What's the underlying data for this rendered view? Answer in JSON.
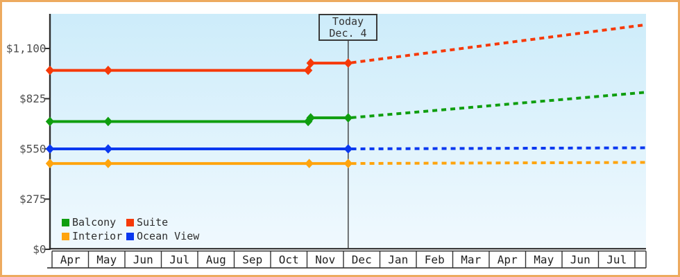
{
  "colors": {
    "frame_border": "#edaa5f",
    "plot_bg_top": "#cdecfa",
    "plot_bg_bottom": "#f0f9fe",
    "axis": "#2e2e2e",
    "y_label_text": "#4f4f4f",
    "month_text": "#1f1f1f",
    "today_line": "#3a3a3a"
  },
  "chart_data": {
    "type": "line",
    "title": "",
    "y_axis": {
      "ticks": [
        {
          "value": 0,
          "label": "$0"
        },
        {
          "value": 275,
          "label": "$275"
        },
        {
          "value": 550,
          "label": "$550"
        },
        {
          "value": 825,
          "label": "$825"
        },
        {
          "value": 1100,
          "label": "$1,100"
        }
      ],
      "range_shown": [
        0,
        1290
      ],
      "grid": "off"
    },
    "x_axis": {
      "months": [
        "Apr",
        "May",
        "Jun",
        "Jul",
        "Aug",
        "Sep",
        "Oct",
        "Nov",
        "Dec",
        "Jan",
        "Feb",
        "Mar",
        "Apr",
        "May",
        "Jun",
        "Jul"
      ]
    },
    "today": {
      "line1": "Today",
      "line2": "Dec. 4",
      "month_position": 8.13
    },
    "series": [
      {
        "name": "Balcony",
        "color": "#0f9e0f",
        "solid_points": [
          {
            "x": -0.057,
            "value": 700,
            "marker": true
          },
          {
            "x": 1.54,
            "value": 700,
            "marker": true
          },
          {
            "x": 7.03,
            "value": 700,
            "marker": true
          },
          {
            "x": 7.1,
            "value": 720,
            "marker": true
          },
          {
            "x": 8.13,
            "value": 720,
            "marker": true
          }
        ],
        "forecast_points": [
          {
            "x": 8.22,
            "value": 721
          },
          {
            "x": 16.3,
            "value": 860
          }
        ]
      },
      {
        "name": "Suite",
        "color": "#f63908",
        "solid_points": [
          {
            "x": -0.057,
            "value": 980,
            "marker": true
          },
          {
            "x": 1.54,
            "value": 980,
            "marker": true
          },
          {
            "x": 7.03,
            "value": 980,
            "marker": true
          },
          {
            "x": 7.1,
            "value": 1020,
            "marker": true
          },
          {
            "x": 8.13,
            "value": 1020,
            "marker": true
          }
        ],
        "forecast_points": [
          {
            "x": 8.22,
            "value": 1022
          },
          {
            "x": 16.3,
            "value": 1230
          }
        ]
      },
      {
        "name": "Interior",
        "color": "#ffa40d",
        "solid_points": [
          {
            "x": -0.057,
            "value": 470,
            "marker": true
          },
          {
            "x": 1.54,
            "value": 470,
            "marker": true
          },
          {
            "x": 7.06,
            "value": 470,
            "marker": true
          },
          {
            "x": 8.13,
            "value": 470,
            "marker": true
          }
        ],
        "forecast_points": [
          {
            "x": 8.22,
            "value": 470
          },
          {
            "x": 16.3,
            "value": 476
          }
        ]
      },
      {
        "name": "Ocean View",
        "color": "#0a38f0",
        "solid_points": [
          {
            "x": -0.057,
            "value": 550,
            "marker": true
          },
          {
            "x": 1.54,
            "value": 550,
            "marker": true
          },
          {
            "x": 8.13,
            "value": 550,
            "marker": true
          }
        ],
        "forecast_points": [
          {
            "x": 8.22,
            "value": 550
          },
          {
            "x": 16.3,
            "value": 556
          }
        ]
      }
    ],
    "legend": {
      "position": "bottom-left",
      "order": [
        "Balcony",
        "Suite",
        "Interior",
        "Ocean View"
      ]
    }
  }
}
